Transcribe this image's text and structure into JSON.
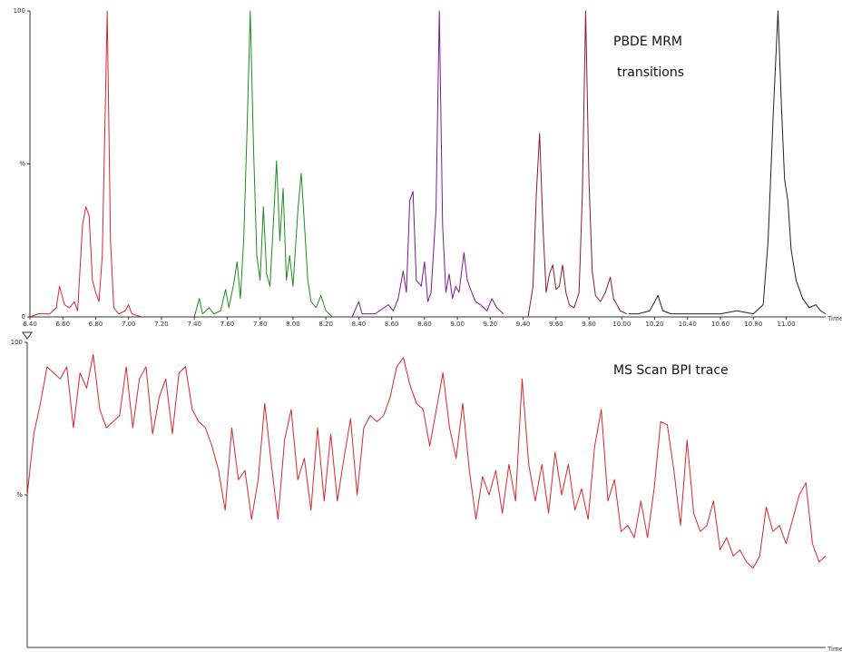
{
  "chart_data": [
    {
      "type": "line",
      "annotations": [
        "PBDE MRM",
        "transitions"
      ],
      "x_label": "Time",
      "xlim": [
        6.4,
        11.24
      ],
      "ylim": [
        0,
        100
      ],
      "xticks": [
        {
          "value": 6.4,
          "label": "6.40"
        },
        {
          "value": 6.6,
          "label": "6.60"
        },
        {
          "value": 6.8,
          "label": "6.80"
        },
        {
          "value": 7.0,
          "label": "7.00"
        },
        {
          "value": 7.2,
          "label": "7.20"
        },
        {
          "value": 7.4,
          "label": "7.40"
        },
        {
          "value": 7.6,
          "label": "7.60"
        },
        {
          "value": 7.8,
          "label": "7.80"
        },
        {
          "value": 8.0,
          "label": "8.00"
        },
        {
          "value": 8.2,
          "label": "8.20"
        },
        {
          "value": 8.4,
          "label": "8.40"
        },
        {
          "value": 8.6,
          "label": "8.60"
        },
        {
          "value": 8.8,
          "label": "8.80"
        },
        {
          "value": 9.0,
          "label": "9.00"
        },
        {
          "value": 9.2,
          "label": "9.20"
        },
        {
          "value": 9.4,
          "label": "9.40"
        },
        {
          "value": 9.6,
          "label": "9.60"
        },
        {
          "value": 9.8,
          "label": "9.80"
        },
        {
          "value": 10.0,
          "label": "10.00"
        },
        {
          "value": 10.2,
          "label": "10.20"
        },
        {
          "value": 10.4,
          "label": "10.40"
        },
        {
          "value": 10.6,
          "label": "10.60"
        },
        {
          "value": 10.8,
          "label": "10.80"
        },
        {
          "value": 11.0,
          "label": "11.00"
        }
      ],
      "yticks": [
        0,
        {
          "value": 50,
          "label": "%"
        },
        100
      ],
      "series": [
        {
          "color": "#d9262b",
          "x": [
            6.4,
            6.45,
            6.52,
            6.56,
            6.58,
            6.61,
            6.64,
            6.67,
            6.69,
            6.72,
            6.74,
            6.76,
            6.78,
            6.8,
            6.82,
            6.84,
            6.87,
            6.89,
            6.91,
            6.94,
            6.98,
            7.0,
            7.02,
            7.08
          ],
          "values": [
            0,
            1,
            1,
            3,
            10,
            4,
            3,
            5,
            2,
            30,
            36,
            33,
            12,
            8,
            5,
            20,
            100,
            25,
            3,
            1,
            2,
            4,
            1,
            0
          ]
        },
        {
          "color": "#1e8c1e",
          "x": [
            7.4,
            7.43,
            7.45,
            7.49,
            7.52,
            7.56,
            7.59,
            7.61,
            7.64,
            7.66,
            7.68,
            7.7,
            7.72,
            7.74,
            7.76,
            7.78,
            7.8,
            7.82,
            7.84,
            7.86,
            7.88,
            7.9,
            7.92,
            7.94,
            7.96,
            7.98,
            8.0,
            8.03,
            8.05,
            8.07,
            8.09,
            8.11,
            8.14,
            8.17,
            8.2,
            8.24
          ],
          "values": [
            0,
            6,
            1,
            3,
            1,
            2,
            9,
            3,
            11,
            18,
            6,
            25,
            60,
            100,
            55,
            20,
            12,
            36,
            14,
            10,
            30,
            51,
            25,
            42,
            12,
            20,
            10,
            35,
            47,
            30,
            12,
            5,
            3,
            7,
            2,
            0
          ]
        },
        {
          "color": "#7a1a8c",
          "x": [
            8.36,
            8.4,
            8.42,
            8.5,
            8.58,
            8.61,
            8.64,
            8.67,
            8.69,
            8.71,
            8.73,
            8.75,
            8.78,
            8.8,
            8.82,
            8.84,
            8.87,
            8.89,
            8.91,
            8.93,
            8.95,
            8.97,
            8.99,
            9.01,
            9.04,
            9.06,
            9.08,
            9.11,
            9.14,
            9.18,
            9.21,
            9.24,
            9.28
          ],
          "values": [
            0,
            5,
            1,
            1,
            4,
            2,
            6,
            15,
            8,
            38,
            41,
            12,
            10,
            18,
            5,
            8,
            35,
            100,
            30,
            8,
            14,
            6,
            10,
            8,
            21,
            12,
            9,
            5,
            4,
            2,
            6,
            3,
            1
          ]
        },
        {
          "color": "#8c1a2a",
          "x": [
            9.43,
            9.46,
            9.48,
            9.5,
            9.52,
            9.54,
            9.56,
            9.58,
            9.6,
            9.62,
            9.64,
            9.66,
            9.68,
            9.71,
            9.74,
            9.76,
            9.78,
            9.8,
            9.82,
            9.84,
            9.87,
            9.9,
            9.93,
            9.95,
            9.99,
            10.03
          ],
          "values": [
            0,
            10,
            40,
            60,
            30,
            8,
            14,
            17,
            9,
            10,
            17,
            8,
            4,
            3,
            8,
            40,
            100,
            45,
            15,
            7,
            5,
            8,
            13,
            6,
            2,
            1
          ]
        },
        {
          "color": "#222222",
          "x": [
            10.04,
            10.1,
            10.17,
            10.22,
            10.25,
            10.3,
            10.45,
            10.6,
            10.7,
            10.8,
            10.86,
            10.89,
            10.92,
            10.95,
            10.97,
            10.99,
            11.01,
            11.03,
            11.06,
            11.1,
            11.14,
            11.18,
            11.21,
            11.24
          ],
          "values": [
            1,
            1,
            2,
            7,
            2,
            1,
            1,
            1,
            2,
            1,
            4,
            25,
            65,
            100,
            70,
            45,
            38,
            22,
            12,
            6,
            3,
            4,
            2,
            1
          ]
        }
      ]
    },
    {
      "type": "line",
      "annotations": [
        "MS Scan BPI trace"
      ],
      "x_label": "Time",
      "xlim": [
        6.4,
        11.24
      ],
      "ylim": [
        0,
        100
      ],
      "yticks": [
        {
          "value": 50,
          "label": "%"
        },
        100
      ],
      "x": [
        6.4,
        6.44,
        6.48,
        6.52,
        6.56,
        6.6,
        6.64,
        6.68,
        6.72,
        6.76,
        6.8,
        6.84,
        6.88,
        6.92,
        6.96,
        7.0,
        7.04,
        7.08,
        7.12,
        7.16,
        7.2,
        7.24,
        7.28,
        7.32,
        7.36,
        7.4,
        7.44,
        7.48,
        7.52,
        7.56,
        7.6,
        7.64,
        7.68,
        7.72,
        7.76,
        7.8,
        7.84,
        7.88,
        7.92,
        7.96,
        8.0,
        8.04,
        8.08,
        8.12,
        8.16,
        8.2,
        8.24,
        8.28,
        8.32,
        8.36,
        8.4,
        8.44,
        8.48,
        8.52,
        8.56,
        8.6,
        8.64,
        8.68,
        8.72,
        8.76,
        8.8,
        8.84,
        8.88,
        8.92,
        8.96,
        9.0,
        9.04,
        9.08,
        9.12,
        9.16,
        9.2,
        9.24,
        9.28,
        9.32,
        9.36,
        9.4,
        9.44,
        9.48,
        9.52,
        9.56,
        9.6,
        9.64,
        9.68,
        9.72,
        9.76,
        9.8,
        9.84,
        9.88,
        9.92,
        9.96,
        10.0,
        10.04,
        10.08,
        10.12,
        10.16,
        10.2,
        10.24,
        10.28,
        10.32,
        10.36,
        10.4,
        10.44,
        10.48,
        10.52,
        10.56,
        10.6,
        10.64,
        10.68,
        10.72,
        10.76,
        10.8,
        10.84,
        10.88,
        10.92,
        10.96,
        11.0,
        11.04,
        11.08,
        11.12,
        11.16,
        11.2,
        11.24
      ],
      "series": [
        {
          "color": "#d9262b",
          "values": [
            50,
            70,
            80,
            92,
            90,
            88,
            92,
            72,
            90,
            85,
            96,
            78,
            72,
            74,
            76,
            92,
            72,
            88,
            92,
            70,
            82,
            88,
            70,
            90,
            92,
            78,
            74,
            72,
            66,
            58,
            45,
            72,
            55,
            58,
            42,
            55,
            80,
            60,
            42,
            68,
            78,
            55,
            62,
            45,
            72,
            48,
            70,
            48,
            62,
            75,
            50,
            72,
            76,
            74,
            76,
            82,
            92,
            95,
            86,
            80,
            78,
            66,
            78,
            90,
            72,
            62,
            80,
            58,
            42,
            56,
            50,
            58,
            44,
            60,
            48,
            88,
            60,
            48,
            60,
            44,
            64,
            50,
            60,
            45,
            52,
            42,
            66,
            78,
            48,
            55,
            38,
            40,
            36,
            48,
            36,
            52,
            74,
            73,
            58,
            40,
            68,
            44,
            38,
            40,
            48,
            32,
            36,
            30,
            32,
            28,
            26,
            30,
            46,
            38,
            40,
            34,
            42,
            50,
            54,
            34,
            28,
            30
          ]
        }
      ]
    }
  ]
}
